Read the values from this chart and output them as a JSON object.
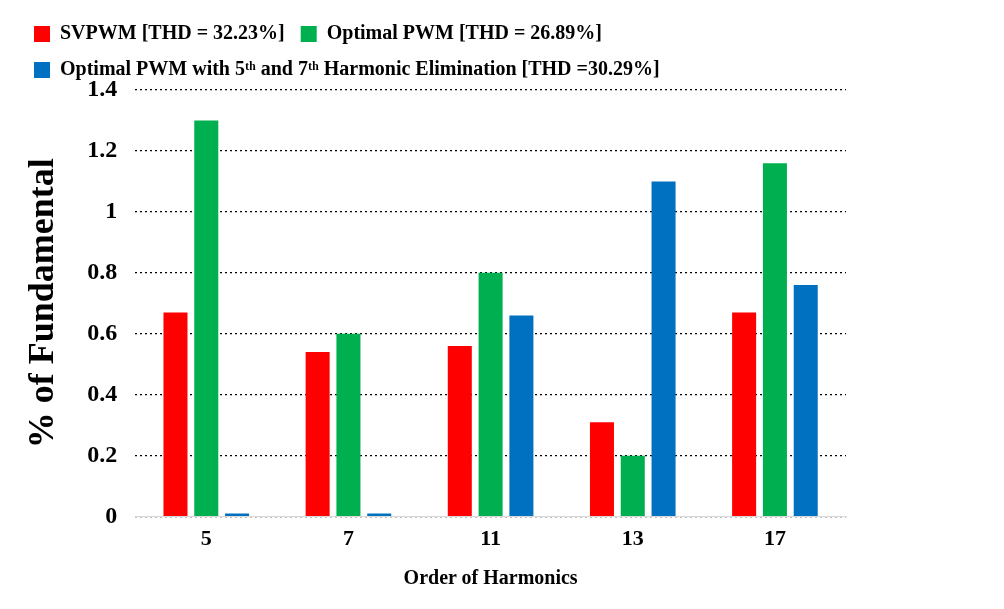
{
  "chart_data": {
    "type": "bar",
    "xlabel": "Order of Harmonics",
    "ylabel": "% of Fundamental",
    "categories": [
      "5",
      "7",
      "11",
      "13",
      "17"
    ],
    "series": [
      {
        "name": "SVPWM [THD = 32.23%]",
        "color": "#ff0000",
        "values": [
          0.67,
          0.54,
          0.56,
          0.31,
          0.67
        ]
      },
      {
        "name": "Optimal PWM [THD = 26.89%]",
        "color": "#00b050",
        "values": [
          1.3,
          0.6,
          0.8,
          0.2,
          1.16
        ]
      },
      {
        "name": "Optimal PWM with 5ᵗʰ and 7ᵗʰ Harmonic Elimination [THD =30.29%]",
        "color": "#0070c0",
        "values": [
          0.01,
          0.01,
          0.66,
          1.1,
          0.76
        ]
      }
    ],
    "ylim": [
      0,
      1.4
    ],
    "yticks": [
      0,
      0.2,
      0.4,
      0.6,
      0.8,
      1,
      1.2,
      1.4
    ],
    "grid": "y",
    "legend": "top"
  }
}
